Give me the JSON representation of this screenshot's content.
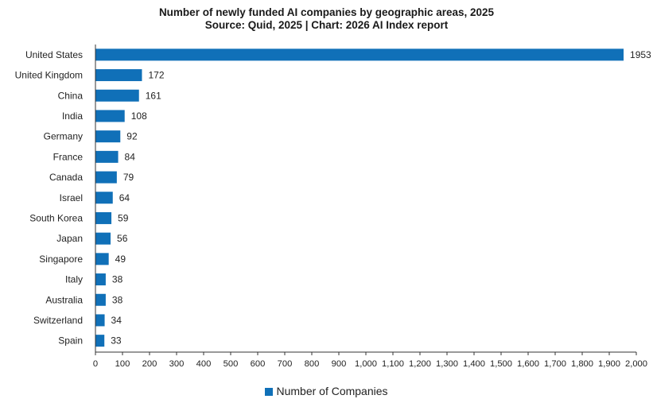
{
  "chart_data": {
    "type": "bar",
    "orientation": "horizontal",
    "title": "Number of newly funded AI companies by geographic areas, 2025",
    "subtitle": "Source: Quid, 2025 | Chart: 2026 AI Index report",
    "categories": [
      "United States",
      "United Kingdom",
      "China",
      "India",
      "Germany",
      "France",
      "Canada",
      "Israel",
      "South Korea",
      "Japan",
      "Singapore",
      "Italy",
      "Australia",
      "Switzerland",
      "Spain"
    ],
    "series": [
      {
        "name": "Number of Companies",
        "values": [
          1953,
          172,
          161,
          108,
          92,
          84,
          79,
          64,
          59,
          56,
          49,
          38,
          38,
          34,
          33
        ],
        "color": "#1070B8"
      }
    ],
    "xlim": [
      0,
      2000
    ],
    "xticks": [
      0,
      100,
      200,
      300,
      400,
      500,
      600,
      700,
      800,
      900,
      1000,
      1100,
      1200,
      1300,
      1400,
      1500,
      1600,
      1700,
      1800,
      1900,
      2000
    ],
    "xtick_labels": [
      "0",
      "100",
      "200",
      "300",
      "400",
      "500",
      "600",
      "700",
      "800",
      "900",
      "1,000",
      "1,100",
      "1,200",
      "1,300",
      "1,400",
      "1,500",
      "1,600",
      "1,700",
      "1,800",
      "1,900",
      "2,000"
    ],
    "grid": false,
    "legend": "bottom-center"
  }
}
